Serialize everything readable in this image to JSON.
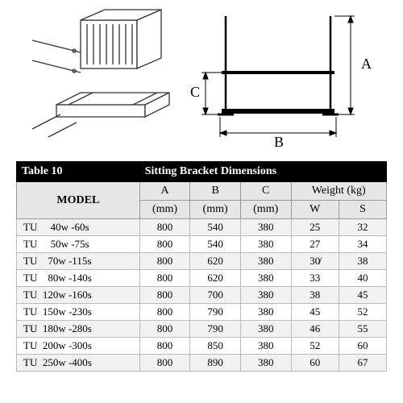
{
  "diagram": {
    "labels": {
      "A": "A",
      "B": "B",
      "C": "C"
    },
    "stroke": "#333333",
    "stroke_width": 1.5,
    "arrow_color": "#000000"
  },
  "table": {
    "title_left": "Table 10",
    "title_right": "Sitting  Bracket Dimensions",
    "header_bg": "#000000",
    "header_fg": "#ffffff",
    "subheader_bg": "#e6e6e6",
    "columns": {
      "model": "MODEL",
      "A": "A",
      "A_unit": "(mm)",
      "B": "B",
      "B_unit": "(mm)",
      "C": "C",
      "C_unit": "(mm)",
      "weight": "Weight (kg)",
      "W": "W",
      "S": "S"
    },
    "rows": [
      {
        "model": "TU     40w -60s",
        "A": 800,
        "B": 540,
        "C": 380,
        "W": 25,
        "S": 32
      },
      {
        "model": "TU     50w -75s",
        "A": 800,
        "B": 540,
        "C": 380,
        "W": 27,
        "S": 34
      },
      {
        "model": "TU    70w -115s",
        "A": 800,
        "B": 620,
        "C": 380,
        "W": "30̸",
        "S": 38
      },
      {
        "model": "TU    80w -140s",
        "A": 800,
        "B": 620,
        "C": 380,
        "W": 33,
        "S": 40
      },
      {
        "model": "TU  120w -160s",
        "A": 800,
        "B": 700,
        "C": 380,
        "W": 38,
        "S": 45
      },
      {
        "model": "TU  150w -230s",
        "A": 800,
        "B": 790,
        "C": 380,
        "W": 45,
        "S": 52
      },
      {
        "model": "TU  180w -280s",
        "A": 800,
        "B": 790,
        "C": 380,
        "W": 46,
        "S": 55
      },
      {
        "model": "TU  200w -300s",
        "A": 800,
        "B": 850,
        "C": 380,
        "W": 52,
        "S": 60
      },
      {
        "model": "TU  250w -400s",
        "A": 800,
        "B": 890,
        "C": 380,
        "W": 60,
        "S": 67
      }
    ]
  }
}
